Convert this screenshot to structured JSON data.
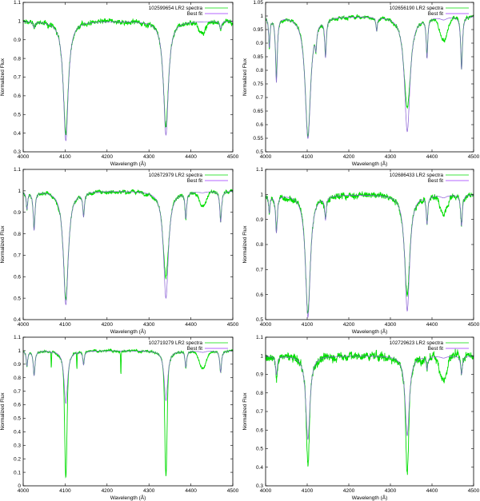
{
  "chart_data": [
    {
      "type": "line",
      "xlabel": "Wavelength (Å)",
      "ylabel": "Normalized Flux",
      "xlim": [
        4000,
        4500
      ],
      "ylim": [
        0.3,
        1.1
      ],
      "ystep": 0.1,
      "xticks": [
        "4000",
        "4100",
        "4200",
        "4300",
        "4400",
        "4500"
      ],
      "yticks": [
        "0.3",
        "0.4",
        "0.5",
        "0.6",
        "0.7",
        "0.8",
        "0.9",
        "1",
        "1.1"
      ],
      "legend_position": "top-right",
      "series": [
        {
          "name": "102599654 LR2 spectra",
          "color": "#00dd00"
        },
        {
          "name": "Best fit",
          "color": "#9b30ff"
        }
      ],
      "noise": 0.012,
      "features": [
        {
          "wl": 4026,
          "fit": 0.97,
          "obs": 0.96,
          "w": 2.5
        },
        {
          "wl": 4101.7,
          "fit": 0.36,
          "obs": 0.4,
          "w": 7
        },
        {
          "wl": 4340.5,
          "fit": 0.39,
          "obs": 0.43,
          "w": 7
        },
        {
          "wl": 4428,
          "fit": 1.0,
          "obs": 0.94,
          "w": 8
        },
        {
          "wl": 4471,
          "fit": 0.96,
          "obs": 0.95,
          "w": 2.5
        }
      ]
    },
    {
      "type": "line",
      "xlabel": "Wavelength (Å)",
      "ylabel": "Normalized Flux",
      "xlim": [
        4000,
        4500
      ],
      "ylim": [
        0.5,
        1.05
      ],
      "ystep": 0.05,
      "xticks": [
        "4000",
        "4100",
        "4200",
        "4300",
        "4400",
        "4500"
      ],
      "yticks": [
        "0.5",
        "0.55",
        "0.6",
        "0.65",
        "0.7",
        "0.75",
        "0.8",
        "0.85",
        "0.9",
        "0.95",
        "1",
        "1.05"
      ],
      "legend_position": "top-right",
      "series": [
        {
          "name": "102656190 LR2 spectra",
          "color": "#00dd00"
        },
        {
          "name": "Best fit",
          "color": "#9b30ff"
        }
      ],
      "noise": 0.006,
      "features": [
        {
          "wl": 4009,
          "fit": 0.89,
          "obs": 0.88,
          "w": 2
        },
        {
          "wl": 4026,
          "fit": 0.76,
          "obs": 0.77,
          "w": 2.5
        },
        {
          "wl": 4101.7,
          "fit": 0.55,
          "obs": 0.56,
          "w": 8
        },
        {
          "wl": 4121,
          "fit": 0.93,
          "obs": 0.93,
          "w": 2
        },
        {
          "wl": 4144,
          "fit": 0.86,
          "obs": 0.87,
          "w": 2.2
        },
        {
          "wl": 4267,
          "fit": 0.95,
          "obs": 0.95,
          "w": 2
        },
        {
          "wl": 4340.5,
          "fit": 0.575,
          "obs": 0.66,
          "w": 8
        },
        {
          "wl": 4388,
          "fit": 0.855,
          "obs": 0.86,
          "w": 2.2
        },
        {
          "wl": 4428,
          "fit": 0.99,
          "obs": 0.91,
          "w": 9
        },
        {
          "wl": 4471,
          "fit": 0.805,
          "obs": 0.81,
          "w": 2.5
        }
      ]
    },
    {
      "type": "line",
      "xlabel": "Wavelength (Å)",
      "ylabel": "Normalized Flux",
      "xlim": [
        4000,
        4500
      ],
      "ylim": [
        0.4,
        1.1
      ],
      "ystep": 0.1,
      "xticks": [
        "4000",
        "4100",
        "4200",
        "4300",
        "4400",
        "4500"
      ],
      "yticks": [
        "0.4",
        "0.5",
        "0.6",
        "0.7",
        "0.8",
        "0.9",
        "1",
        "1.1"
      ],
      "legend_position": "top-right",
      "series": [
        {
          "name": "102672979 LR2 spectra",
          "color": "#00dd00"
        },
        {
          "name": "Best fit",
          "color": "#9b30ff"
        }
      ],
      "noise": 0.008,
      "features": [
        {
          "wl": 4009,
          "fit": 0.92,
          "obs": 0.92,
          "w": 2
        },
        {
          "wl": 4026,
          "fit": 0.82,
          "obs": 0.83,
          "w": 2.5
        },
        {
          "wl": 4101.7,
          "fit": 0.47,
          "obs": 0.5,
          "w": 7
        },
        {
          "wl": 4144,
          "fit": 0.89,
          "obs": 0.9,
          "w": 2.2
        },
        {
          "wl": 4340.5,
          "fit": 0.5,
          "obs": 0.6,
          "w": 7
        },
        {
          "wl": 4388,
          "fit": 0.88,
          "obs": 0.88,
          "w": 2.2
        },
        {
          "wl": 4428,
          "fit": 0.995,
          "obs": 0.93,
          "w": 8
        },
        {
          "wl": 4471,
          "fit": 0.855,
          "obs": 0.86,
          "w": 2.5
        }
      ]
    },
    {
      "type": "line",
      "xlabel": "Wavelength (Å)",
      "ylabel": "Normalized Flux",
      "xlim": [
        4000,
        4500
      ],
      "ylim": [
        0.5,
        1.1
      ],
      "ystep": 0.1,
      "xticks": [
        "4000",
        "4100",
        "4200",
        "4300",
        "4400",
        "4500"
      ],
      "yticks": [
        "0.5",
        "0.6",
        "0.7",
        "0.8",
        "0.9",
        "1",
        "1.1"
      ],
      "legend_position": "top-right",
      "series": [
        {
          "name": "102686433 LR2 spectra",
          "color": "#00dd00"
        },
        {
          "name": "Best fit",
          "color": "#9b30ff"
        }
      ],
      "noise": 0.011,
      "features": [
        {
          "wl": 4009,
          "fit": 0.93,
          "obs": 0.93,
          "w": 2
        },
        {
          "wl": 4026,
          "fit": 0.85,
          "obs": 0.86,
          "w": 2.5
        },
        {
          "wl": 4101.7,
          "fit": 0.51,
          "obs": 0.53,
          "w": 7
        },
        {
          "wl": 4144,
          "fit": 0.91,
          "obs": 0.91,
          "w": 2.2
        },
        {
          "wl": 4340.5,
          "fit": 0.535,
          "obs": 0.6,
          "w": 7
        },
        {
          "wl": 4388,
          "fit": 0.89,
          "obs": 0.89,
          "w": 2.2
        },
        {
          "wl": 4428,
          "fit": 0.99,
          "obs": 0.92,
          "w": 8
        },
        {
          "wl": 4471,
          "fit": 0.875,
          "obs": 0.88,
          "w": 2.5
        }
      ]
    },
    {
      "type": "line",
      "xlabel": "Wavelength (Å)",
      "ylabel": "Normalized Flux",
      "xlim": [
        4000,
        4500
      ],
      "ylim": [
        0,
        1.1
      ],
      "ystep": 0.1,
      "xticks": [
        "4000",
        "4100",
        "4200",
        "4300",
        "4400",
        "4500"
      ],
      "yticks": [
        "0",
        "0.1",
        "0.2",
        "0.3",
        "0.4",
        "0.5",
        "0.6",
        "0.7",
        "0.8",
        "0.9",
        "1",
        "1.1"
      ],
      "legend_position": "top-right",
      "series": [
        {
          "name": "102719279 LR2 spectra",
          "color": "#00dd00"
        },
        {
          "name": "Best fit",
          "color": "#9b30ff"
        }
      ],
      "noise": 0.008,
      "features": [
        {
          "wl": 4009,
          "fit": 0.89,
          "obs": 0.89,
          "w": 2
        },
        {
          "wl": 4026,
          "fit": 0.82,
          "obs": 0.82,
          "w": 2.5
        },
        {
          "wl": 4067,
          "fit": 0.99,
          "obs": 0.88,
          "w": 0.6
        },
        {
          "wl": 4101.7,
          "fit": 0.61,
          "obs": 0.07,
          "w": 5
        },
        {
          "wl": 4128,
          "fit": 0.99,
          "obs": 0.88,
          "w": 0.6
        },
        {
          "wl": 4144,
          "fit": 0.9,
          "obs": 0.9,
          "w": 2.2
        },
        {
          "wl": 4233,
          "fit": 0.995,
          "obs": 0.83,
          "w": 0.6
        },
        {
          "wl": 4340.5,
          "fit": 0.63,
          "obs": 0.08,
          "w": 5
        },
        {
          "wl": 4388,
          "fit": 0.88,
          "obs": 0.88,
          "w": 2.2
        },
        {
          "wl": 4428,
          "fit": 0.99,
          "obs": 0.87,
          "w": 8
        },
        {
          "wl": 4471,
          "fit": 0.84,
          "obs": 0.84,
          "w": 2.5
        }
      ]
    },
    {
      "type": "line",
      "xlabel": "Wavelength (Å)",
      "ylabel": "Normalized Flux",
      "xlim": [
        4000,
        4500
      ],
      "ylim": [
        0.3,
        1.1
      ],
      "ystep": 0.1,
      "xticks": [
        "4000",
        "4100",
        "4200",
        "4300",
        "4400",
        "4500"
      ],
      "yticks": [
        "0.3",
        "0.4",
        "0.5",
        "0.6",
        "0.7",
        "0.8",
        "0.9",
        "1",
        "1.1"
      ],
      "legend_position": "top-right",
      "series": [
        {
          "name": "102729623 LR2 spectra",
          "color": "#00dd00"
        },
        {
          "name": "Best fit",
          "color": "#9b30ff"
        }
      ],
      "noise": 0.02,
      "features": [
        {
          "wl": 4026,
          "fit": 0.9,
          "obs": 0.88,
          "w": 2.5
        },
        {
          "wl": 4101.7,
          "fit": 0.55,
          "obs": 0.41,
          "w": 6
        },
        {
          "wl": 4340.5,
          "fit": 0.57,
          "obs": 0.37,
          "w": 6
        },
        {
          "wl": 4388,
          "fit": 0.93,
          "obs": 0.93,
          "w": 2.2
        },
        {
          "wl": 4428,
          "fit": 0.99,
          "obs": 0.87,
          "w": 8
        },
        {
          "wl": 4471,
          "fit": 0.9,
          "obs": 0.9,
          "w": 2.5
        }
      ]
    }
  ]
}
